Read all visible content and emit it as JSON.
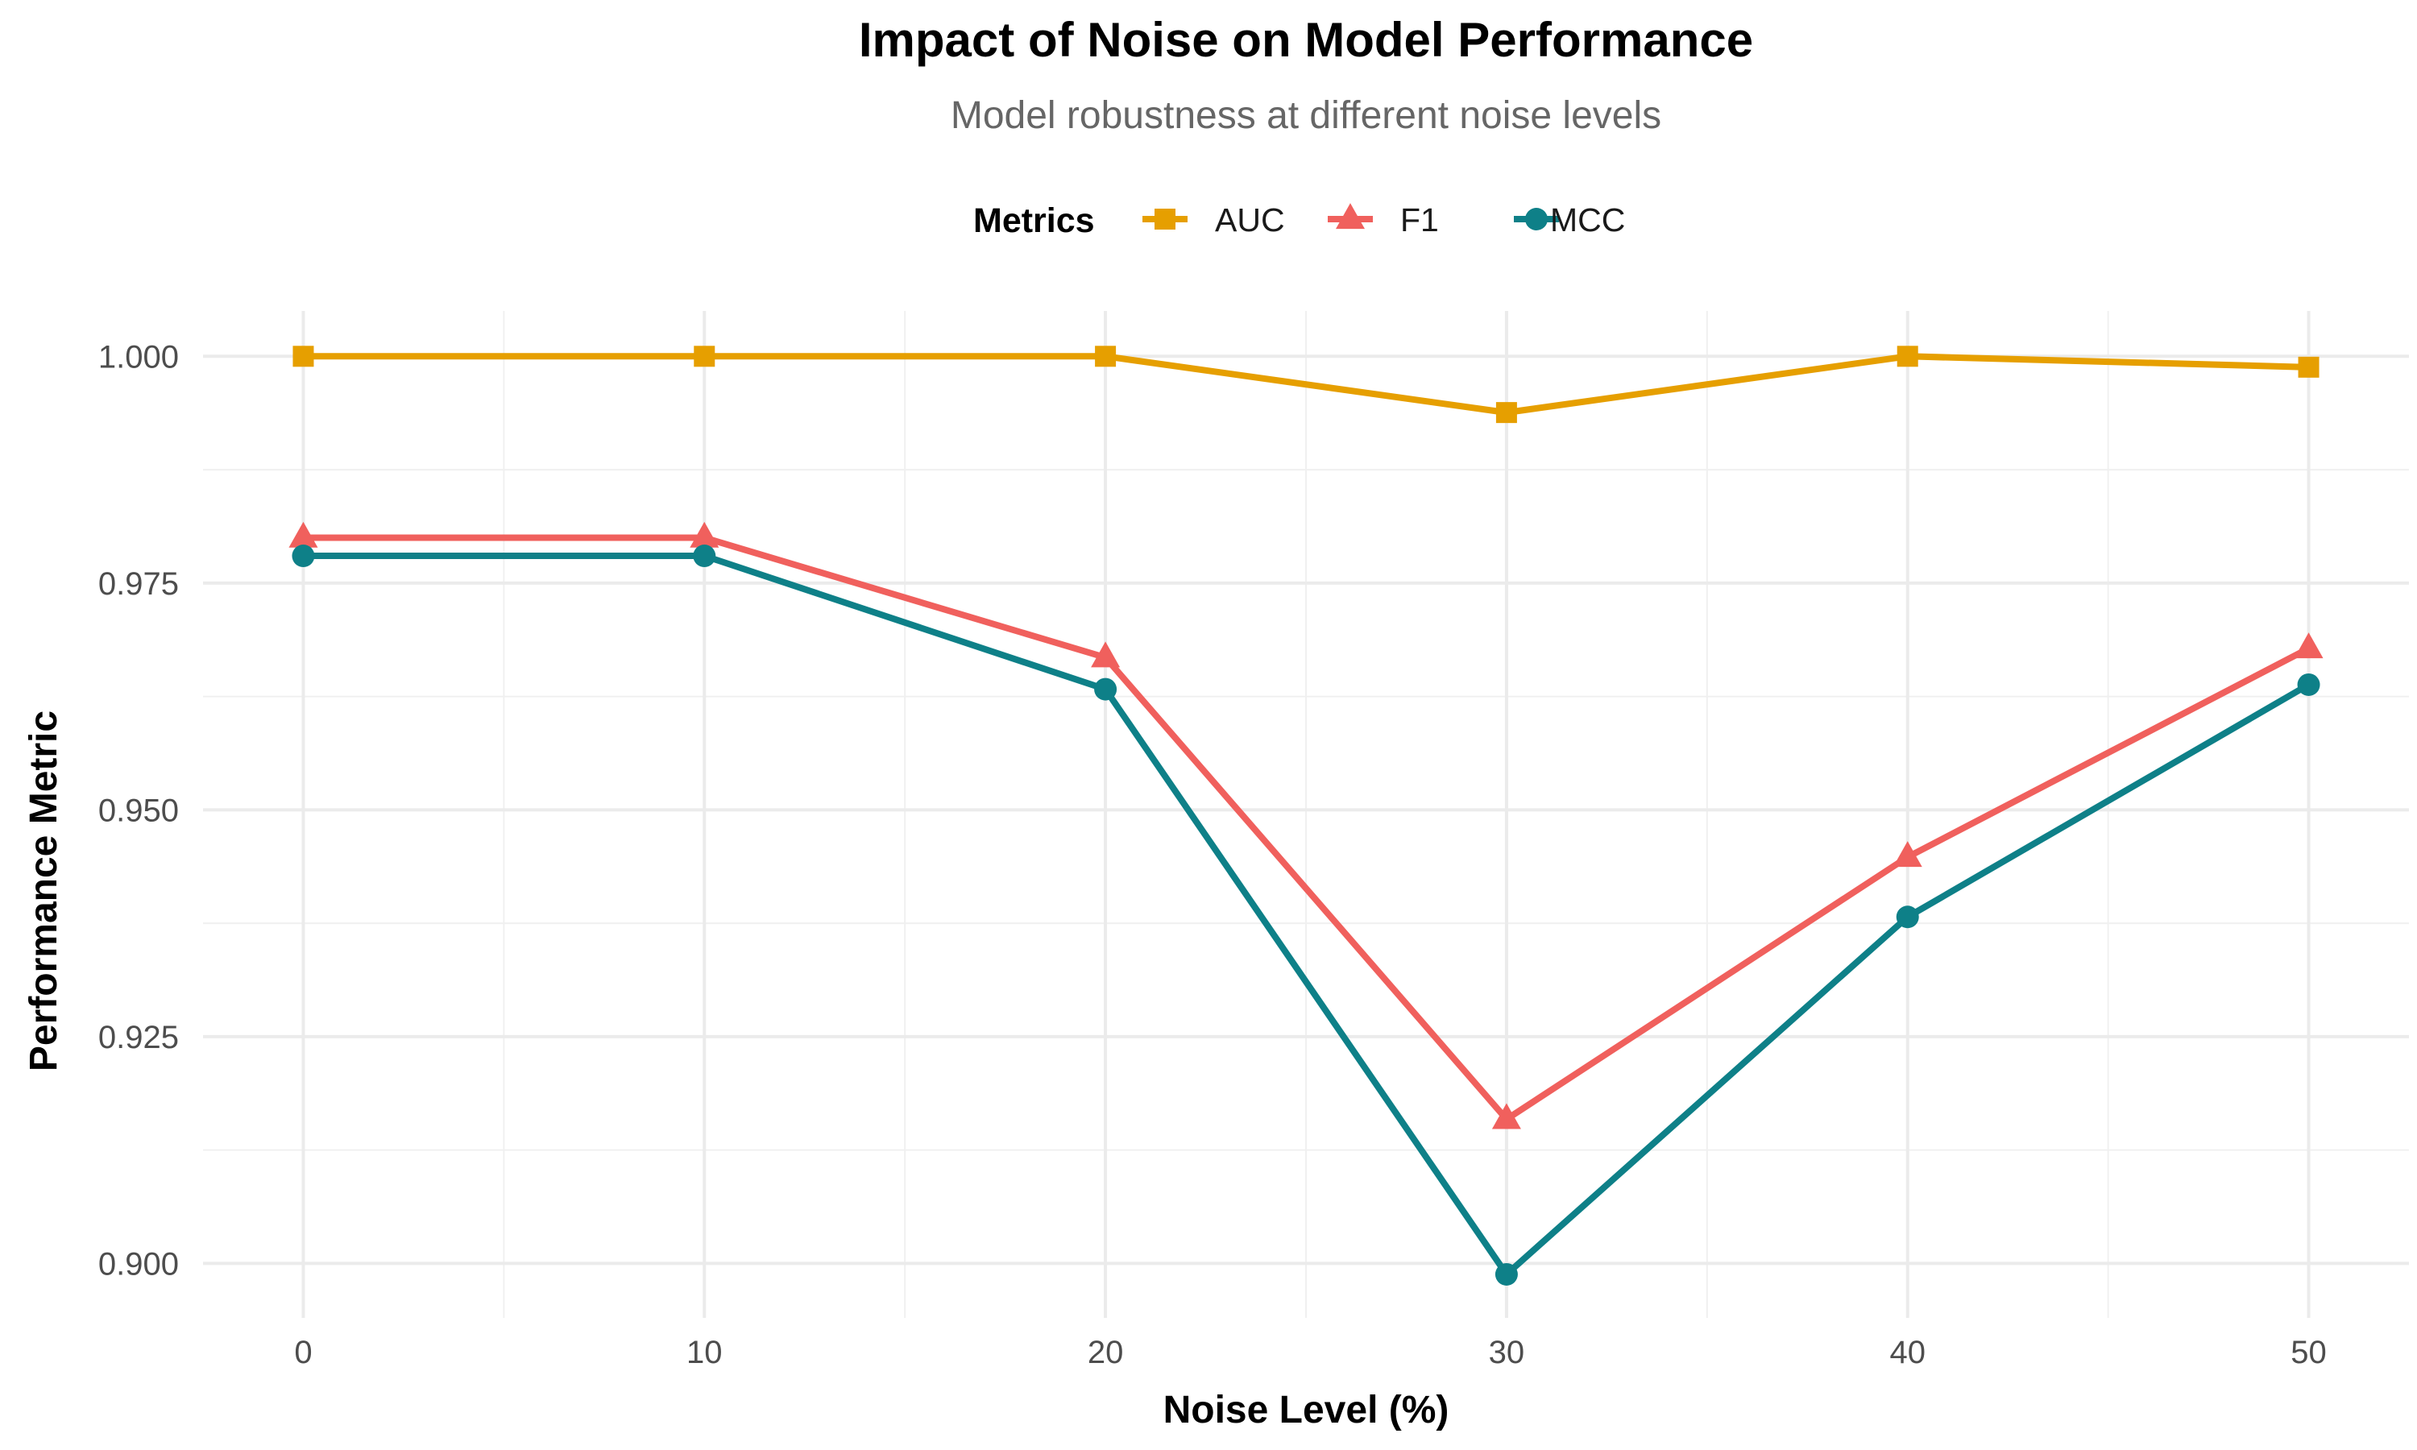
{
  "chart_data": {
    "type": "line",
    "title": "Impact of Noise on Model Performance",
    "subtitle": "Model robustness at different noise levels",
    "xlabel": "Noise Level (%)",
    "ylabel": "Performance Metric",
    "x": [
      0,
      10,
      20,
      30,
      40,
      50
    ],
    "xlim": [
      -2.5,
      52.5
    ],
    "ylim": [
      0.894,
      1.005
    ],
    "x_ticks": [
      0,
      10,
      20,
      30,
      40,
      50
    ],
    "x_tick_labels": [
      "0",
      "10",
      "20",
      "30",
      "40",
      "50"
    ],
    "y_ticks": [
      0.9,
      0.925,
      0.95,
      0.975,
      1.0
    ],
    "y_tick_labels": [
      "0.900",
      "0.925",
      "0.950",
      "0.975",
      "1.000"
    ],
    "grid": true,
    "legend_title": "Metrics",
    "legend_position": "top",
    "series": [
      {
        "name": "AUC",
        "color": "#E69F00",
        "marker": "square",
        "values": [
          1.0,
          1.0,
          1.0,
          0.9938,
          1.0,
          0.9988
        ]
      },
      {
        "name": "F1",
        "color": "#F0605D",
        "marker": "triangle",
        "values": [
          0.98,
          0.98,
          0.9668,
          0.9159,
          0.9448,
          0.9678
        ]
      },
      {
        "name": "MCC",
        "color": "#0E8088",
        "marker": "circle",
        "values": [
          0.978,
          0.978,
          0.9633,
          0.8988,
          0.9382,
          0.9638
        ]
      }
    ]
  }
}
